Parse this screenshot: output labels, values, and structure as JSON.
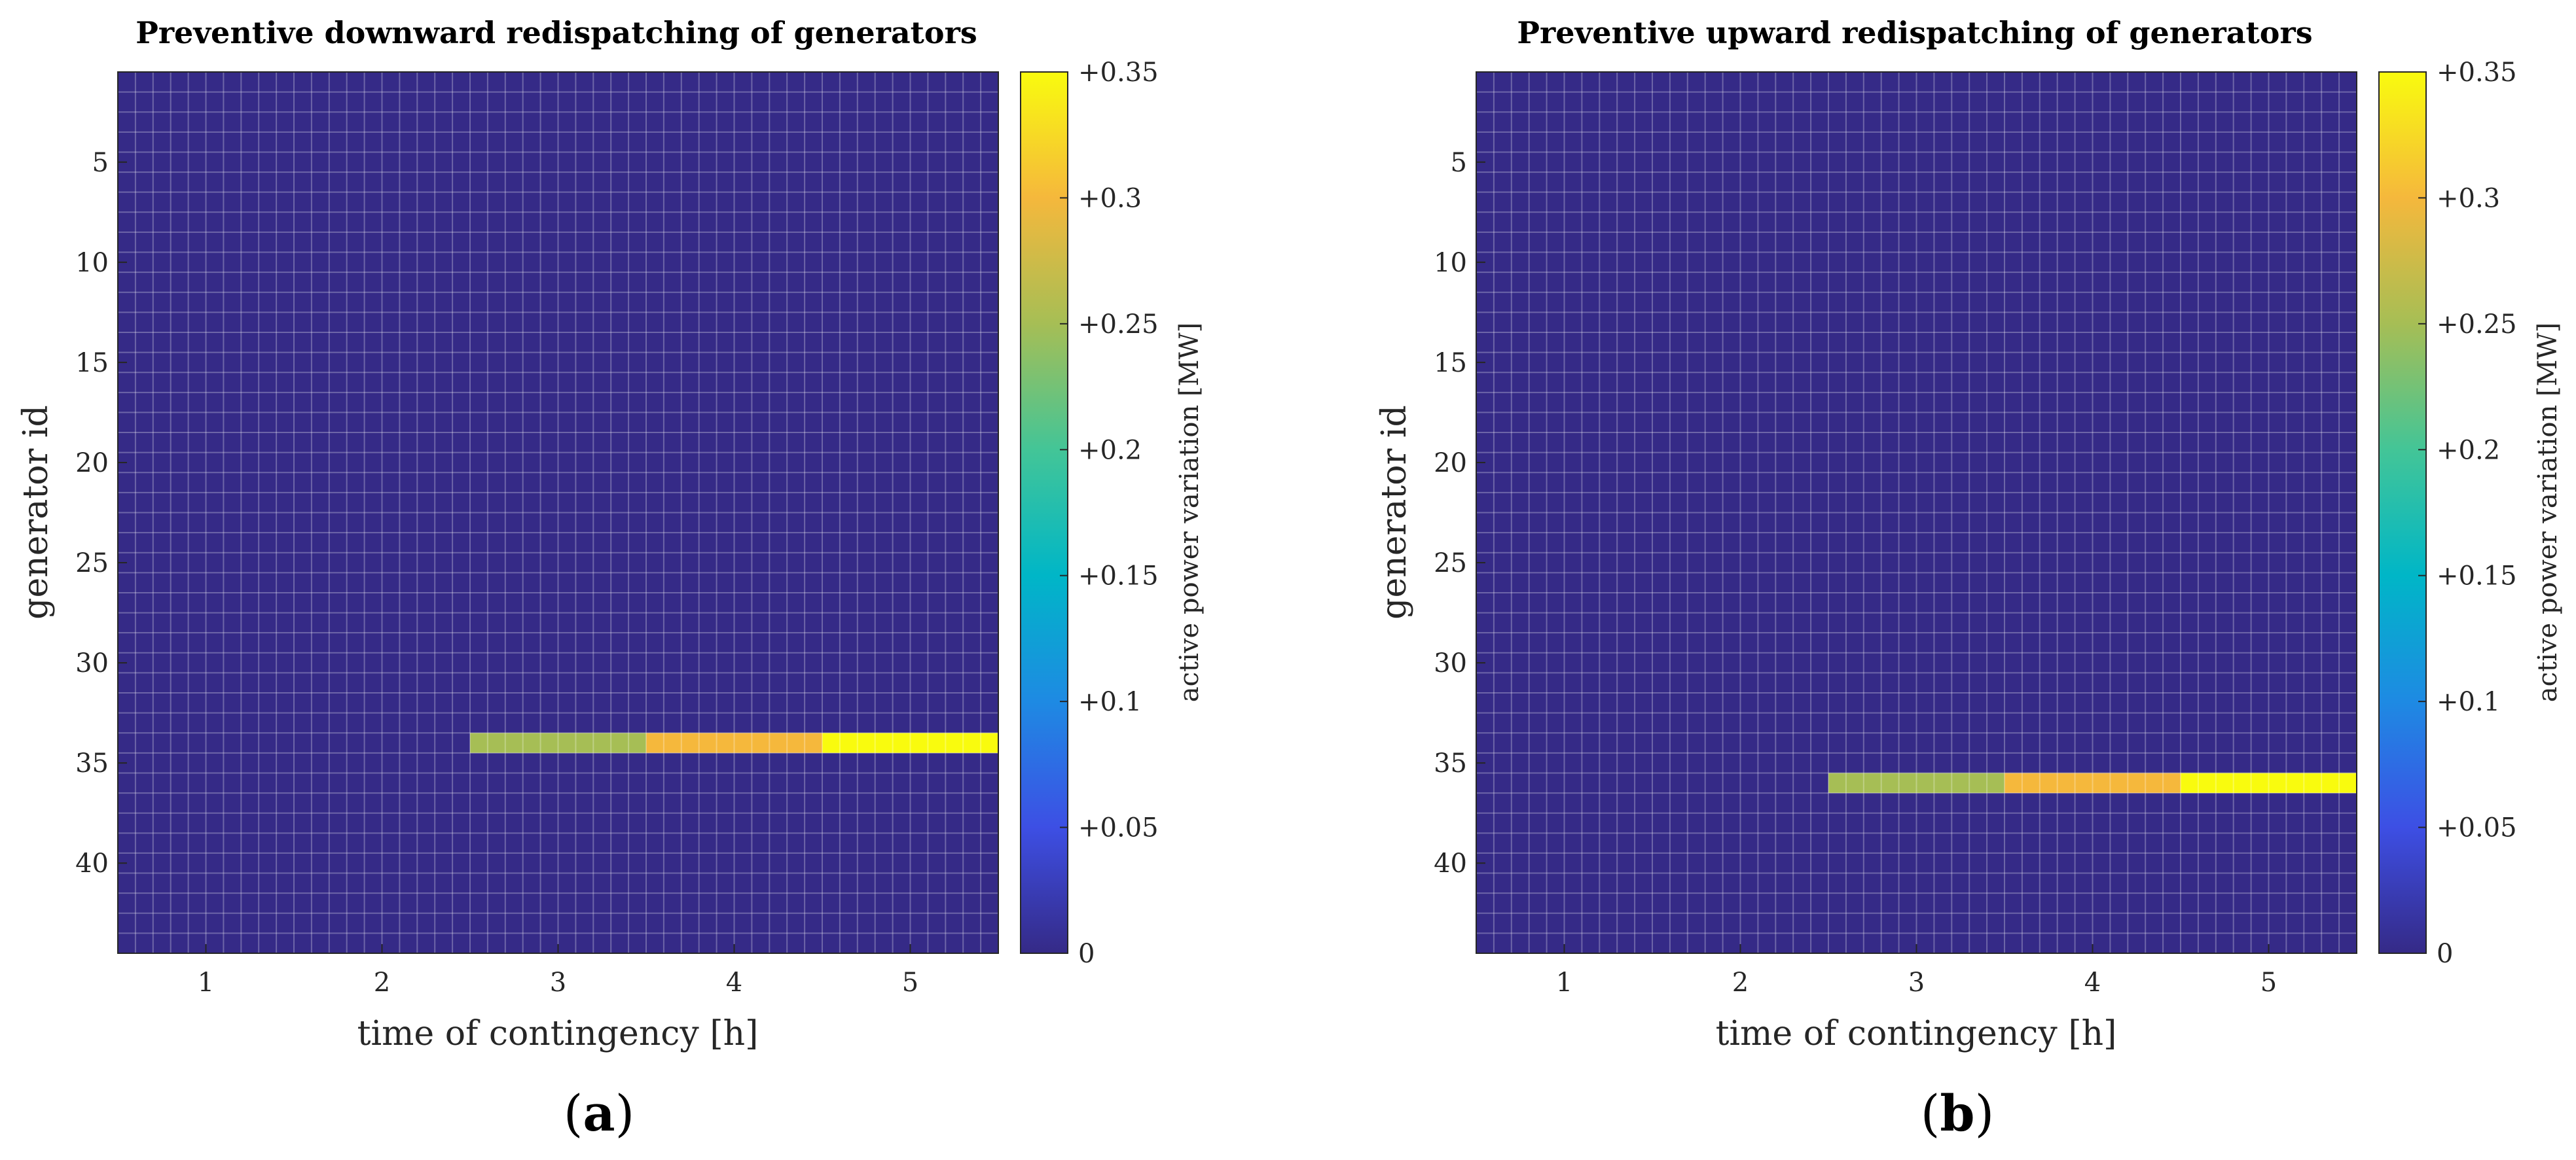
{
  "chart_data": [
    {
      "type": "heatmap",
      "title": "Preventive downward redispatching of generators",
      "xlabel": "time of contingency [h]",
      "ylabel": "generator id",
      "panel_label_parts": [
        "(",
        "a",
        ")"
      ],
      "x_values": [
        1,
        2,
        3,
        4,
        5
      ],
      "x_ticks": [
        1,
        2,
        3,
        4,
        5
      ],
      "x_tick_labels": [
        "1",
        "2",
        "3",
        "4",
        "5"
      ],
      "y_ticks": [
        5,
        10,
        15,
        20,
        25,
        30,
        35,
        40
      ],
      "y_tick_labels": [
        "5",
        "10",
        "15",
        "20",
        "25",
        "30",
        "35",
        "40"
      ],
      "ylim": [
        0.5,
        44.5
      ],
      "xlim": [
        0.5,
        5.5
      ],
      "n_generators": 44,
      "default_value": 0,
      "nonzero_cells": [
        {
          "generator": 34,
          "time": 3,
          "value": 0.25
        },
        {
          "generator": 34,
          "time": 4,
          "value": 0.3
        },
        {
          "generator": 34,
          "time": 5,
          "value": 0.35
        }
      ],
      "colorbar": {
        "label": "active power variation [MW]",
        "range": [
          0,
          0.35
        ],
        "ticks": [
          0,
          0.05,
          0.1,
          0.15,
          0.2,
          0.25,
          0.3,
          0.35
        ],
        "tick_labels": [
          "0",
          "+0.05",
          "+0.1",
          "+0.15",
          "+0.2",
          "+0.25",
          "+0.3",
          "+0.35"
        ],
        "colormap": "parula"
      },
      "grid": true
    },
    {
      "type": "heatmap",
      "title": "Preventive upward redispatching of generators",
      "xlabel": "time of contingency [h]",
      "ylabel": "generator id",
      "panel_label_parts": [
        "(",
        "b",
        ")"
      ],
      "x_values": [
        1,
        2,
        3,
        4,
        5
      ],
      "x_ticks": [
        1,
        2,
        3,
        4,
        5
      ],
      "x_tick_labels": [
        "1",
        "2",
        "3",
        "4",
        "5"
      ],
      "y_ticks": [
        5,
        10,
        15,
        20,
        25,
        30,
        35,
        40
      ],
      "y_tick_labels": [
        "5",
        "10",
        "15",
        "20",
        "25",
        "30",
        "35",
        "40"
      ],
      "ylim": [
        0.5,
        44.5
      ],
      "xlim": [
        0.5,
        5.5
      ],
      "n_generators": 44,
      "default_value": 0,
      "nonzero_cells": [
        {
          "generator": 36,
          "time": 3,
          "value": 0.25
        },
        {
          "generator": 36,
          "time": 4,
          "value": 0.3
        },
        {
          "generator": 36,
          "time": 5,
          "value": 0.35
        }
      ],
      "colorbar": {
        "label": "active power variation [MW]",
        "range": [
          0,
          0.35
        ],
        "ticks": [
          0,
          0.05,
          0.1,
          0.15,
          0.2,
          0.25,
          0.3,
          0.35
        ],
        "tick_labels": [
          "0",
          "+0.05",
          "+0.1",
          "+0.15",
          "+0.2",
          "+0.25",
          "+0.3",
          "+0.35"
        ],
        "colormap": "parula"
      },
      "grid": true
    }
  ],
  "colors": {
    "background": "#ffffff",
    "grid_line": "#ffffff",
    "axis_line": "#262626",
    "parula_stops": [
      "#352a87",
      "#3d4fe4",
      "#1e8ae3",
      "#00b6c7",
      "#43c597",
      "#a6be55",
      "#f5b83c",
      "#f9fb0e"
    ]
  }
}
